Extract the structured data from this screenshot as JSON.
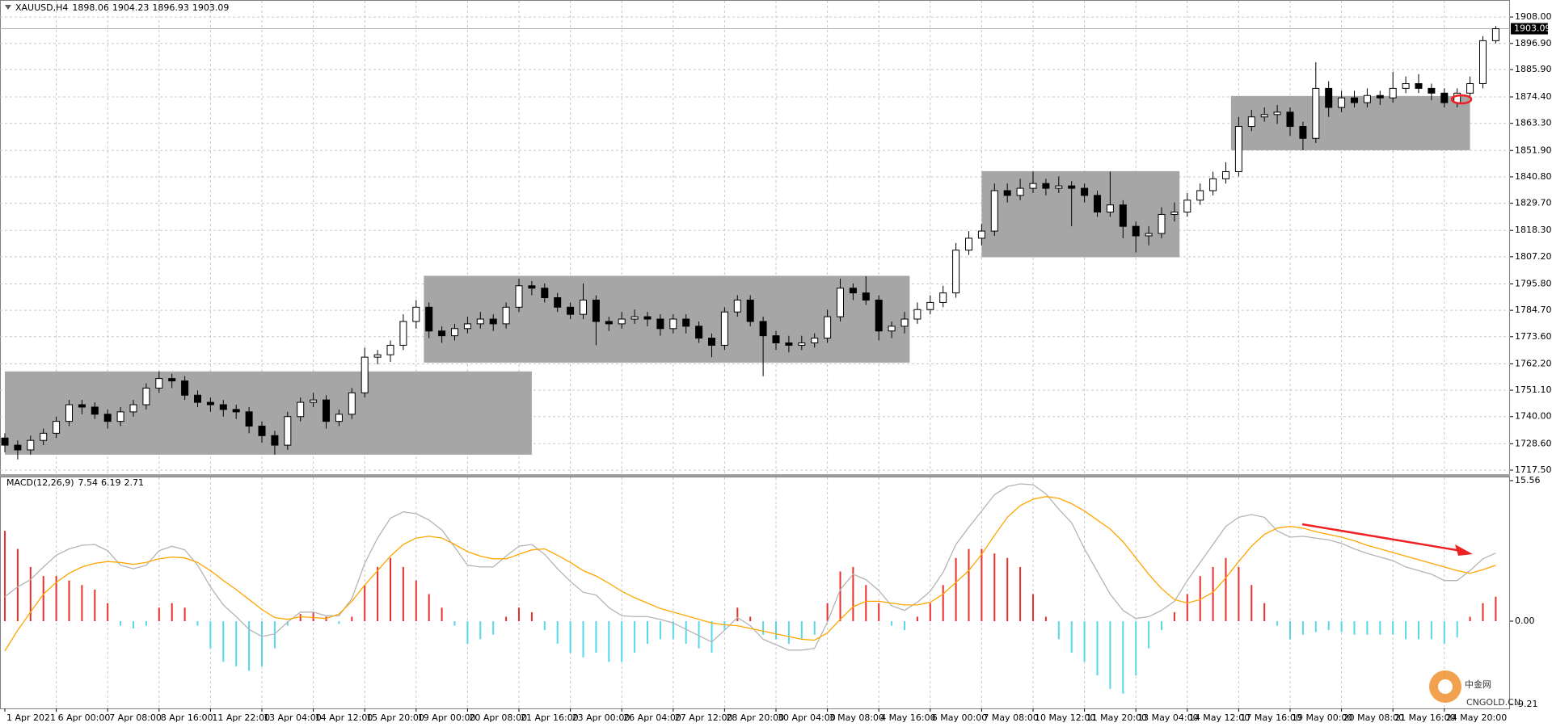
{
  "chart_data": [
    {
      "type": "candlestick",
      "title": "XAUUSD,H4",
      "categories": [
        "1 Apr 2021",
        null,
        null,
        null,
        "6 Apr 00:00",
        null,
        null,
        null,
        "7 Apr 08:00",
        null,
        null,
        null,
        "8 Apr 16:00",
        null,
        null,
        null,
        "11 Apr 22:00",
        null,
        null,
        null,
        "13 Apr 04:00",
        null,
        null,
        null,
        "14 Apr 12:00",
        null,
        null,
        null,
        "15 Apr 20:00",
        null,
        null,
        null,
        "19 Apr 00:00",
        null,
        null,
        null,
        "20 Apr 08:00",
        null,
        null,
        null,
        "21 Apr 16:00",
        null,
        null,
        null,
        "23 Apr 00:00",
        null,
        null,
        null,
        "26 Apr 04:00",
        null,
        null,
        null,
        "27 Apr 12:00",
        null,
        null,
        null,
        "28 Apr 20:00",
        null,
        null,
        null,
        "30 Apr 04:00",
        null,
        null,
        null,
        "3 May 08:00",
        null,
        null,
        null,
        "4 May 16:00",
        null,
        null,
        null,
        "6 May 00:00",
        null,
        null,
        null,
        "7 May 08:00",
        null,
        null,
        null,
        "10 May 12:00",
        null,
        null,
        null,
        "11 May 20:00",
        null,
        null,
        null,
        "13 May 04:00",
        null,
        null,
        null,
        "14 May 12:00",
        null,
        null,
        null,
        "17 May 16:00",
        null,
        null,
        null,
        "19 May 00:00",
        null,
        null,
        null,
        "20 May 08:00",
        null,
        null,
        null,
        "21 May 16:00",
        null,
        null,
        null,
        "24 May 20:00",
        null,
        null,
        null,
        null
      ],
      "candles": [
        [
          1731,
          1733,
          1725,
          1728
        ],
        [
          1728,
          1730,
          1722,
          1726
        ],
        [
          1726,
          1732,
          1724,
          1730
        ],
        [
          1730,
          1735,
          1728,
          1733
        ],
        [
          1733,
          1740,
          1731,
          1738
        ],
        [
          1738,
          1747,
          1736,
          1745
        ],
        [
          1745,
          1747,
          1741,
          1744
        ],
        [
          1744,
          1746,
          1739,
          1741
        ],
        [
          1741,
          1743,
          1735,
          1738
        ],
        [
          1738,
          1744,
          1736,
          1742
        ],
        [
          1742,
          1747,
          1740,
          1745
        ],
        [
          1745,
          1754,
          1743,
          1752
        ],
        [
          1752,
          1759,
          1750,
          1756
        ],
        [
          1756,
          1758,
          1752,
          1755
        ],
        [
          1755,
          1757,
          1747,
          1749
        ],
        [
          1749,
          1751,
          1744,
          1746
        ],
        [
          1746,
          1748,
          1742,
          1745
        ],
        [
          1745,
          1747,
          1740,
          1743
        ],
        [
          1743,
          1745,
          1739,
          1742
        ],
        [
          1742,
          1744,
          1733,
          1736
        ],
        [
          1736,
          1738,
          1729,
          1732
        ],
        [
          1732,
          1734,
          1724,
          1728
        ],
        [
          1728,
          1742,
          1726,
          1740
        ],
        [
          1740,
          1748,
          1738,
          1746
        ],
        [
          1746,
          1750,
          1744,
          1747
        ],
        [
          1747,
          1749,
          1735,
          1738
        ],
        [
          1738,
          1743,
          1736,
          1741
        ],
        [
          1741,
          1752,
          1739,
          1750
        ],
        [
          1750,
          1769,
          1748,
          1765
        ],
        [
          1765,
          1768,
          1762,
          1766
        ],
        [
          1766,
          1772,
          1763,
          1770
        ],
        [
          1770,
          1783,
          1768,
          1780
        ],
        [
          1780,
          1789,
          1777,
          1786
        ],
        [
          1786,
          1788,
          1773,
          1776
        ],
        [
          1776,
          1778,
          1771,
          1774
        ],
        [
          1774,
          1779,
          1772,
          1777
        ],
        [
          1777,
          1782,
          1775,
          1779
        ],
        [
          1779,
          1784,
          1777,
          1781
        ],
        [
          1781,
          1783,
          1776,
          1779
        ],
        [
          1779,
          1788,
          1777,
          1786
        ],
        [
          1786,
          1798,
          1784,
          1795
        ],
        [
          1795,
          1797,
          1791,
          1794
        ],
        [
          1794,
          1796,
          1788,
          1790
        ],
        [
          1790,
          1792,
          1784,
          1786
        ],
        [
          1786,
          1788,
          1781,
          1783
        ],
        [
          1783,
          1796,
          1781,
          1789
        ],
        [
          1789,
          1791,
          1770,
          1780
        ],
        [
          1780,
          1782,
          1776,
          1779
        ],
        [
          1779,
          1784,
          1777,
          1781
        ],
        [
          1781,
          1785,
          1779,
          1782
        ],
        [
          1782,
          1784,
          1778,
          1781
        ],
        [
          1781,
          1783,
          1774,
          1777
        ],
        [
          1777,
          1783,
          1775,
          1781
        ],
        [
          1781,
          1783,
          1775,
          1778
        ],
        [
          1778,
          1780,
          1771,
          1773
        ],
        [
          1773,
          1775,
          1765,
          1770
        ],
        [
          1770,
          1786,
          1768,
          1784
        ],
        [
          1784,
          1791,
          1782,
          1789
        ],
        [
          1789,
          1791,
          1778,
          1780
        ],
        [
          1780,
          1782,
          1757,
          1774
        ],
        [
          1774,
          1776,
          1768,
          1771
        ],
        [
          1771,
          1774,
          1767,
          1770
        ],
        [
          1770,
          1774,
          1768,
          1771
        ],
        [
          1771,
          1775,
          1769,
          1773
        ],
        [
          1773,
          1785,
          1771,
          1782
        ],
        [
          1782,
          1798,
          1780,
          1794
        ],
        [
          1794,
          1796,
          1789,
          1792
        ],
        [
          1792,
          1799,
          1787,
          1789
        ],
        [
          1789,
          1791,
          1772,
          1776
        ],
        [
          1776,
          1780,
          1773,
          1778
        ],
        [
          1778,
          1784,
          1775,
          1781
        ],
        [
          1781,
          1788,
          1779,
          1785
        ],
        [
          1785,
          1791,
          1783,
          1788
        ],
        [
          1788,
          1795,
          1786,
          1792
        ],
        [
          1792,
          1813,
          1790,
          1810
        ],
        [
          1810,
          1818,
          1808,
          1815
        ],
        [
          1815,
          1821,
          1812,
          1818
        ],
        [
          1818,
          1838,
          1816,
          1835
        ],
        [
          1835,
          1838,
          1830,
          1833
        ],
        [
          1833,
          1840,
          1831,
          1836
        ],
        [
          1836,
          1843,
          1834,
          1838
        ],
        [
          1838,
          1840,
          1833,
          1836
        ],
        [
          1836,
          1841,
          1834,
          1837
        ],
        [
          1837,
          1839,
          1820,
          1836
        ],
        [
          1836,
          1838,
          1830,
          1833
        ],
        [
          1833,
          1835,
          1824,
          1826
        ],
        [
          1826,
          1843,
          1824,
          1829
        ],
        [
          1829,
          1831,
          1815,
          1820
        ],
        [
          1820,
          1822,
          1809,
          1816
        ],
        [
          1816,
          1820,
          1812,
          1817
        ],
        [
          1817,
          1828,
          1815,
          1825
        ],
        [
          1825,
          1830,
          1822,
          1826
        ],
        [
          1826,
          1834,
          1824,
          1831
        ],
        [
          1831,
          1838,
          1829,
          1835
        ],
        [
          1835,
          1843,
          1833,
          1840
        ],
        [
          1840,
          1847,
          1838,
          1843
        ],
        [
          1843,
          1866,
          1841,
          1862
        ],
        [
          1862,
          1869,
          1860,
          1866
        ],
        [
          1866,
          1870,
          1864,
          1867
        ],
        [
          1867,
          1871,
          1863,
          1868
        ],
        [
          1868,
          1870,
          1858,
          1862
        ],
        [
          1862,
          1864,
          1852,
          1857
        ],
        [
          1857,
          1889,
          1855,
          1878
        ],
        [
          1878,
          1881,
          1866,
          1870
        ],
        [
          1870,
          1877,
          1868,
          1874
        ],
        [
          1874,
          1877,
          1870,
          1872
        ],
        [
          1872,
          1878,
          1870,
          1875
        ],
        [
          1875,
          1877,
          1871,
          1874
        ],
        [
          1874,
          1885,
          1872,
          1878
        ],
        [
          1878,
          1883,
          1876,
          1880
        ],
        [
          1880,
          1884,
          1876,
          1878
        ],
        [
          1878,
          1880,
          1873,
          1876
        ],
        [
          1876,
          1878,
          1870,
          1872
        ],
        [
          1872,
          1878,
          1870,
          1876
        ],
        [
          1876,
          1883,
          1874,
          1880
        ],
        [
          1880,
          1900,
          1878,
          1898.06
        ],
        [
          1898.06,
          1904.23,
          1896.93,
          1903.09
        ]
      ],
      "up_color": "#ffffff",
      "down_color": "#000000",
      "zone_color": "#a6a6a6",
      "zones": [
        [
          0,
          41,
          1724,
          1759
        ],
        [
          32.6,
          70.4,
          1762.7,
          1799.2
        ],
        [
          76,
          91.4,
          1807,
          1843.2
        ],
        [
          95.4,
          114,
          1852,
          1874.8
        ]
      ],
      "ylim": [
        1715.8,
        1913.8
      ],
      "yticks": [
        {
          "value": 1908,
          "label": "1908.00"
        },
        {
          "value": 1896.9,
          "label": "1896.90"
        },
        {
          "value": 1885.9,
          "label": "1885.90"
        },
        {
          "value": 1874.4,
          "label": "1874.40"
        },
        {
          "value": 1863.3,
          "label": "1863.30"
        },
        {
          "value": 1851.9,
          "label": "1851.90"
        },
        {
          "value": 1840.8,
          "label": "1840.80"
        },
        {
          "value": 1829.7,
          "label": "1829.70"
        },
        {
          "value": 1818.3,
          "label": "1818.30"
        },
        {
          "value": 1807.2,
          "label": "1807.20"
        },
        {
          "value": 1795.8,
          "label": "1795.80"
        },
        {
          "value": 1784.7,
          "label": "1784.70"
        },
        {
          "value": 1773.6,
          "label": "1773.60"
        },
        {
          "value": 1762.2,
          "label": "1762.20"
        },
        {
          "value": 1751.1,
          "label": "1751.10"
        },
        {
          "value": 1740,
          "label": "1740.00"
        },
        {
          "value": 1728.6,
          "label": "1728.60"
        },
        {
          "value": 1717.5,
          "label": "1717.50"
        }
      ],
      "grid": true
    },
    {
      "type": "macd",
      "title": "MACD(12,26,9)",
      "histogram": {
        "pos_color": "#e8302a",
        "neg_color": "#55d8ea",
        "values": [
          10,
          8,
          6,
          5,
          5,
          4.5,
          4,
          3.5,
          2,
          -0.5,
          -0.8,
          -0.5,
          1.5,
          2,
          1.5,
          -0.5,
          -3,
          -4.5,
          -5,
          -5.5,
          -5,
          -3,
          -0.5,
          0.8,
          1,
          0.5,
          -0.3,
          0.5,
          4,
          6,
          7,
          6,
          4.5,
          3,
          1.5,
          -0.5,
          -2.5,
          -2,
          -1.5,
          0.5,
          1.5,
          1,
          -1,
          -2.5,
          -3.5,
          -4,
          -3.5,
          -4.5,
          -4.5,
          -3.5,
          -2.5,
          -2,
          -2,
          -2.5,
          -3,
          -3.5,
          -1,
          1.5,
          0.5,
          -1.5,
          -2,
          -2.5,
          -2,
          -1.5,
          2,
          5.5,
          6,
          4,
          2,
          -0.5,
          -1,
          0.5,
          2,
          4,
          7,
          8,
          8,
          7.5,
          7,
          6,
          3,
          0.5,
          -2,
          -3.5,
          -4.5,
          -6,
          -7.5,
          -8,
          -6,
          -3,
          -1,
          1,
          3,
          5,
          6,
          7,
          6,
          4,
          2,
          -0.5,
          -2,
          -1.5,
          -1.2,
          -1,
          -1.2,
          -1.5,
          -1.5,
          -1.5,
          -1.5,
          -2,
          -2,
          -2,
          -2.5,
          -1.8,
          0.5,
          2,
          2.71
        ]
      },
      "macd": {
        "color": "#b4b4b4",
        "values": [
          2.7,
          3.8,
          4.6,
          6,
          7.3,
          8,
          8.4,
          8.5,
          7.8,
          6.2,
          5.8,
          6.2,
          7.8,
          8.3,
          7.9,
          6.2,
          3.8,
          1.8,
          0.5,
          -0.9,
          -1.7,
          -1.4,
          -0.1,
          1,
          1,
          0.6,
          0.6,
          2.5,
          6.4,
          9.2,
          11.4,
          12.1,
          11.9,
          11.2,
          10.1,
          8.2,
          6.2,
          6,
          6,
          7.2,
          8.3,
          8.5,
          7.4,
          5.8,
          4.4,
          3.2,
          2.9,
          1.5,
          0.6,
          0.5,
          0.5,
          0.2,
          -0.2,
          -0.9,
          -1.6,
          -2.3,
          -1,
          0.4,
          -0.5,
          -2,
          -2.6,
          -3.2,
          -3.2,
          -3,
          -0.1,
          3.5,
          5.2,
          4.6,
          3.4,
          1.7,
          1.2,
          2.1,
          3.3,
          5.4,
          8.5,
          10.4,
          12.2,
          14,
          14.9,
          15.2,
          15.1,
          14.1,
          12.4,
          10.9,
          8,
          5.5,
          3,
          1.2,
          0.3,
          0.5,
          1.2,
          2.2,
          4.5,
          6.5,
          8.5,
          10.5,
          11.5,
          11.8,
          11.5,
          10,
          9.3,
          9.4,
          9.2,
          9,
          8.6,
          8,
          7.5,
          7.1,
          6.7,
          6,
          5.6,
          5.2,
          4.5,
          4.5,
          5.6,
          6.9,
          7.54
        ]
      },
      "signal": {
        "color": "#ffa500",
        "values": [
          -3.3,
          -1,
          1,
          3,
          4.3,
          5.3,
          6,
          6.4,
          6.6,
          6.5,
          6.3,
          6.5,
          6.9,
          7.1,
          7,
          6.5,
          5.6,
          4.5,
          3.5,
          2.4,
          1.3,
          0.4,
          0.2,
          0.5,
          0.4,
          0.3,
          0.8,
          2.2,
          4,
          5.6,
          7.2,
          8.5,
          9.2,
          9.4,
          9.2,
          8.5,
          7.7,
          7.2,
          6.9,
          6.9,
          7.4,
          7.9,
          8,
          7.3,
          6.5,
          5.6,
          5,
          4.2,
          3.3,
          2.6,
          2,
          1.4,
          1,
          0.6,
          0.2,
          -0.2,
          -0.4,
          -0.5,
          -0.8,
          -1.1,
          -1.4,
          -1.7,
          -2,
          -2.1,
          -1.3,
          0.2,
          1.6,
          2.2,
          2.2,
          2,
          1.8,
          1.8,
          2.1,
          3,
          4.3,
          5.6,
          7.4,
          9.5,
          11.5,
          12.8,
          13.5,
          13.8,
          13.6,
          13,
          12.2,
          11.2,
          10.2,
          8.8,
          7,
          5.2,
          3.6,
          2.4,
          2,
          2.4,
          3.2,
          4.8,
          6.6,
          8.3,
          9.6,
          10.3,
          10.5,
          10.3,
          9.9,
          9.6,
          9.3,
          8.9,
          8.4,
          8,
          7.6,
          7.2,
          6.8,
          6.4,
          6,
          5.6,
          5.3,
          5.7,
          6.19
        ]
      },
      "ylim": [
        -9.21,
        15.56
      ],
      "yticks": [
        15.56,
        {
          "value": 0,
          "label": "0.00"
        },
        -9.21
      ],
      "grid": true
    }
  ],
  "watermark": {
    "text": "中金网",
    "sub": "CNGOLD.CN"
  }
}
